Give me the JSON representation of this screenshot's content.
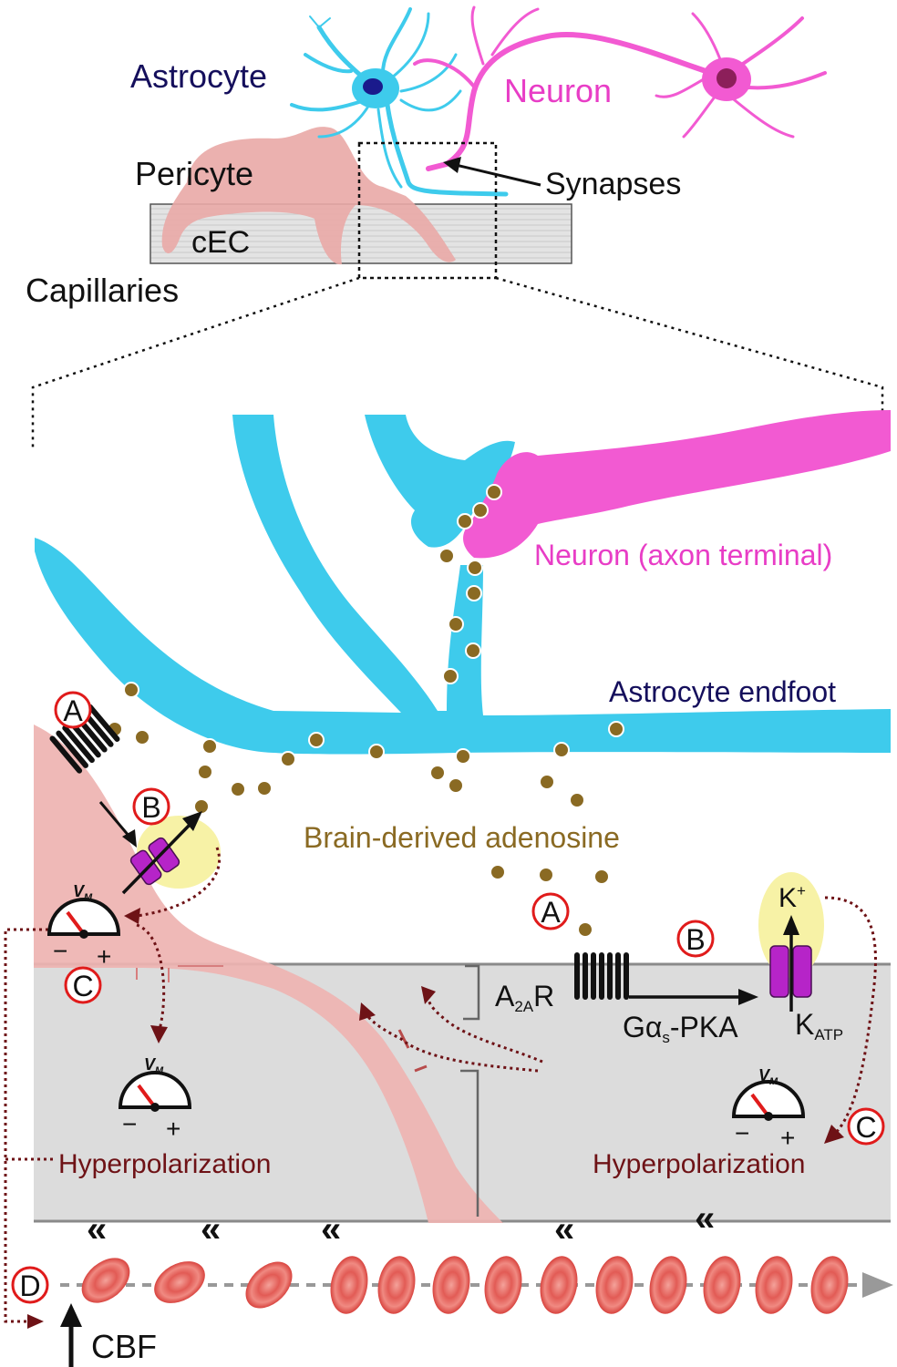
{
  "top": {
    "astrocyte": "Astrocyte",
    "neuron": "Neuron",
    "pericyte": "Pericyte",
    "cec": "cEC",
    "capillaries": "Capillaries",
    "synapses": "Synapses"
  },
  "detail": {
    "neuron_terminal": "Neuron (axon terminal)",
    "endfoot": "Astrocyte endfoot",
    "adenosine": "Brain-derived adenosine",
    "a2ar": {
      "main": "A",
      "sub": "2A",
      "tail": "R"
    },
    "gas_pka": {
      "main": "Gα",
      "sub": "s",
      "tail": "-PKA"
    },
    "katp": {
      "main": "K",
      "sub": "ATP"
    },
    "kplus": {
      "main": "K",
      "sup": "+"
    },
    "vm": {
      "main": "V",
      "sub": "M"
    },
    "meter_minus": "−",
    "meter_plus": "+",
    "hyper_left": "Hyperpolarization",
    "hyper_right": "Hyperpolarization",
    "cbf": "CBF",
    "flow_chevron": "«"
  },
  "markers": {
    "a": "A",
    "b": "B",
    "c": "C",
    "d": "D"
  },
  "colors": {
    "astrocyte": "#3ecbec",
    "neuron": "#f25ad2",
    "pericyte": "#eeb3b1",
    "vessel": "#dddddd",
    "adenosine": "#8a6a23",
    "label_dark": "#150f5c",
    "label_red": "#6e1216",
    "channel": "#b624c8",
    "halo": "#f7f2a6"
  }
}
